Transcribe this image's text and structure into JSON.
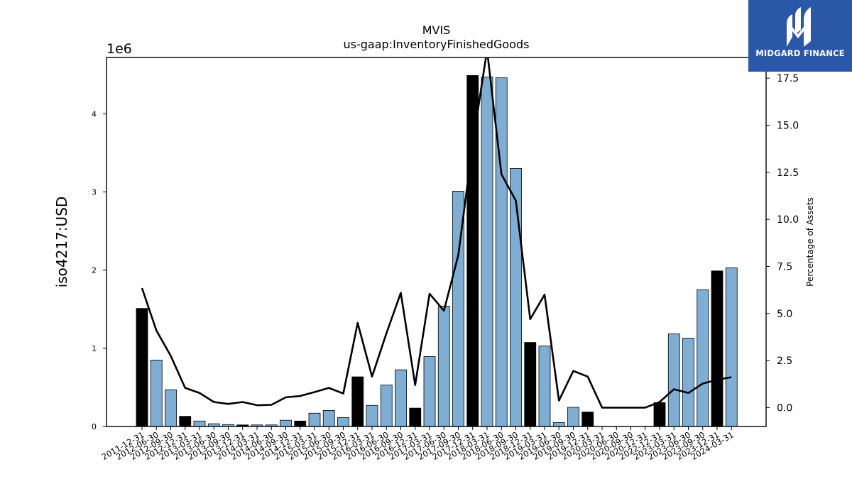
{
  "chart_data": {
    "type": "bar",
    "title": "MVIS",
    "subtitle": "us-gaap:InventoryFinishedGoods",
    "ylabel": "iso4217:USD",
    "y_offset_text": "1e6",
    "y2label": "Percentage of Assets",
    "ylim": [
      0,
      4720000
    ],
    "y2lim": [
      -1.0,
      18.6
    ],
    "yticks": [
      "0",
      "1",
      "2",
      "3",
      "4"
    ],
    "y2ticks": [
      "0.0",
      "2.5",
      "5.0",
      "7.5",
      "10.0",
      "12.5",
      "15.0",
      "17.5"
    ],
    "categories": [
      "2011-12-31",
      "2012-06-30",
      "2012-09-30",
      "2012-12-31",
      "2013-03-31",
      "2013-06-30",
      "2013-09-30",
      "2013-12-31",
      "2014-03-31",
      "2014-06-30",
      "2014-09-30",
      "2014-12-31",
      "2015-03-31",
      "2015-06-30",
      "2015-09-30",
      "2015-12-31",
      "2016-03-31",
      "2016-06-30",
      "2016-09-30",
      "2016-12-31",
      "2017-03-31",
      "2017-06-30",
      "2017-09-30",
      "2017-12-31",
      "2018-03-31",
      "2018-06-30",
      "2018-09-30",
      "2018-12-31",
      "2019-03-31",
      "2019-06-30",
      "2019-09-30",
      "2019-12-31",
      "2020-03-31",
      "2020-06-30",
      "2020-09-30",
      "2020-12-31",
      "2022-12-31",
      "2023-03-31",
      "2023-06-30",
      "2023-09-30",
      "2023-12-31",
      "2024-03-31"
    ],
    "series": [
      {
        "values": [
          1510000,
          850000,
          470000,
          130000,
          70000,
          35000,
          25000,
          20000,
          20000,
          20000,
          80000,
          70000,
          170000,
          205000,
          115000,
          635000,
          270000,
          530000,
          725000,
          235000,
          895000,
          1540000,
          3010000,
          4490000,
          4470000,
          4460000,
          3300000,
          1075000,
          1030000,
          50000,
          245000,
          185000,
          0,
          0,
          0,
          0,
          305000,
          1185000,
          1130000,
          1750000,
          1990000,
          2030000
        ],
        "bar_colors": [
          "#000000",
          "#7eaed3",
          "#7eaed3",
          "#000000",
          "#7eaed3",
          "#7eaed3",
          "#7eaed3",
          "#000000",
          "#7eaed3",
          "#7eaed3",
          "#7eaed3",
          "#000000",
          "#7eaed3",
          "#7eaed3",
          "#7eaed3",
          "#000000",
          "#7eaed3",
          "#7eaed3",
          "#7eaed3",
          "#000000",
          "#7eaed3",
          "#7eaed3",
          "#7eaed3",
          "#000000",
          "#7eaed3",
          "#7eaed3",
          "#7eaed3",
          "#000000",
          "#7eaed3",
          "#7eaed3",
          "#7eaed3",
          "#000000",
          "#7eaed3",
          "#7eaed3",
          "#7eaed3",
          "#000000",
          "#000000",
          "#7eaed3",
          "#7eaed3",
          "#7eaed3",
          "#000000",
          "#7eaed3"
        ]
      },
      {
        "axis": "right",
        "type": "line",
        "color": "#000000",
        "values": [
          6.35,
          4.1,
          2.75,
          1.05,
          0.78,
          0.3,
          0.2,
          0.3,
          0.13,
          0.15,
          0.55,
          0.62,
          0.83,
          1.05,
          0.75,
          4.5,
          1.65,
          3.95,
          6.1,
          1.2,
          6.05,
          5.15,
          8.1,
          14.0,
          19.0,
          12.4,
          11.0,
          4.7,
          6.0,
          0.38,
          1.95,
          1.65,
          0.0,
          0.0,
          0.0,
          0.0,
          0.3,
          0.98,
          0.78,
          1.28,
          1.48,
          1.62
        ]
      }
    ],
    "grid": false,
    "colors": {
      "bar_light": "#7eaed3",
      "bar_dark": "#000000",
      "line": "#000000"
    }
  },
  "logo": {
    "text": "MIDGARD FINANCE",
    "bg": "#2a57a8"
  }
}
